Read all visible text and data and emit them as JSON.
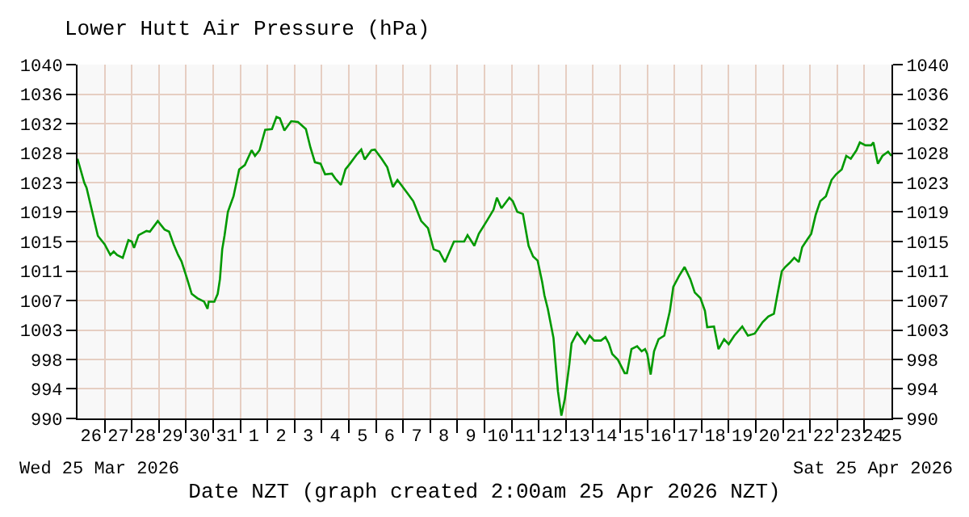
{
  "chart_data": {
    "type": "line",
    "title": "Lower Hutt Air Pressure (hPa)",
    "xlabel": "Date NZT (graph created 2:00am 25 Apr 2026 NZT)",
    "annotations": [
      "Wed 25 Mar 2026",
      "Sat 25 Apr 2026"
    ],
    "x": [
      "2026-03-26T00:00",
      "2026-03-26T06:00",
      "2026-03-26T08:00",
      "2026-03-26T18:00",
      "2026-03-27T00:00",
      "2026-03-27T05:00",
      "2026-03-27T08:00",
      "2026-03-27T11:00",
      "2026-03-27T16:00",
      "2026-03-27T21:00",
      "2026-03-28T00:00",
      "2026-03-28T02:00",
      "2026-03-28T06:00",
      "2026-03-28T13:00",
      "2026-03-28T16:00",
      "2026-03-28T23:00",
      "2026-03-29T05:00",
      "2026-03-29T09:00",
      "2026-03-29T13:00",
      "2026-03-29T17:00",
      "2026-03-29T20:00",
      "2026-03-30T01:00",
      "2026-03-30T05:00",
      "2026-03-30T10:00",
      "2026-03-30T16:00",
      "2026-03-30T19:00",
      "2026-03-30T20:00",
      "2026-03-31T01:00",
      "2026-03-31T04:00",
      "2026-03-31T06:00",
      "2026-03-31T08:00",
      "2026-03-31T10:00",
      "2026-03-31T13:00",
      "2026-03-31T18:00",
      "2026-03-31T23:00",
      "2026-04-01T04:00",
      "2026-04-01T10:00",
      "2026-04-01T13:00",
      "2026-04-01T17:00",
      "2026-04-01T22:00",
      "2026-04-02T04:00",
      "2026-04-02T08:00",
      "2026-04-02T11:00",
      "2026-04-02T15:00",
      "2026-04-02T21:00",
      "2026-04-03T03:00",
      "2026-04-03T10:00",
      "2026-04-03T14:00",
      "2026-04-03T18:00",
      "2026-04-03T23:00",
      "2026-04-04T03:00",
      "2026-04-04T09:00",
      "2026-04-04T12:00",
      "2026-04-04T17:00",
      "2026-04-04T21:00",
      "2026-04-05T01:00",
      "2026-04-05T07:00",
      "2026-04-05T11:00",
      "2026-04-05T14:00",
      "2026-04-05T20:00",
      "2026-04-05T23:00",
      "2026-04-06T05:00",
      "2026-04-06T10:00",
      "2026-04-06T15:00",
      "2026-04-06T19:00",
      "2026-04-07T04:00",
      "2026-04-07T09:00",
      "2026-04-07T16:00",
      "2026-04-07T22:00",
      "2026-04-08T03:00",
      "2026-04-08T08:00",
      "2026-04-08T13:00",
      "2026-04-08T21:00",
      "2026-04-09T06:00",
      "2026-04-09T09:00",
      "2026-04-09T15:00",
      "2026-04-09T19:00",
      "2026-04-10T02:00",
      "2026-04-10T08:00",
      "2026-04-10T11:00",
      "2026-04-10T15:00",
      "2026-04-10T22:00",
      "2026-04-11T01:00",
      "2026-04-11T05:00",
      "2026-04-11T10:00",
      "2026-04-11T15:00",
      "2026-04-11T19:00",
      "2026-04-11T23:00",
      "2026-04-12T03:00",
      "2026-04-12T05:00",
      "2026-04-12T08:00",
      "2026-04-12T13:00",
      "2026-04-12T17:00",
      "2026-04-12T20:00",
      "2026-04-12T23:00",
      "2026-04-13T03:00",
      "2026-04-13T05:00",
      "2026-04-13T10:00",
      "2026-04-13T17:00",
      "2026-04-13T21:00",
      "2026-04-14T01:00",
      "2026-04-14T07:00",
      "2026-04-14T11:00",
      "2026-04-14T14:00",
      "2026-04-14T17:00",
      "2026-04-14T22:00",
      "2026-04-15T04:00",
      "2026-04-15T06:00",
      "2026-04-15T10:00",
      "2026-04-15T15:00",
      "2026-04-15T19:00",
      "2026-04-15T22:00",
      "2026-04-16T00:00",
      "2026-04-16T03:00",
      "2026-04-16T06:00",
      "2026-04-16T10:00",
      "2026-04-16T15:00",
      "2026-04-16T20:00",
      "2026-04-16T23:00",
      "2026-04-17T04:00",
      "2026-04-17T09:00",
      "2026-04-17T14:00",
      "2026-04-17T18:00",
      "2026-04-17T23:00",
      "2026-04-18T03:00",
      "2026-04-18T05:00",
      "2026-04-18T11:00",
      "2026-04-18T15:00",
      "2026-04-18T20:00",
      "2026-04-19T00:00",
      "2026-04-19T05:00",
      "2026-04-19T12:00",
      "2026-04-19T17:00",
      "2026-04-19T23:00",
      "2026-04-20T06:00",
      "2026-04-20T11:00",
      "2026-04-20T16:00",
      "2026-04-20T19:00",
      "2026-04-20T23:00",
      "2026-04-21T02:00",
      "2026-04-21T06:00",
      "2026-04-21T10:00",
      "2026-04-21T14:00",
      "2026-04-21T17:00",
      "2026-04-21T22:00",
      "2026-04-22T01:00",
      "2026-04-22T05:00",
      "2026-04-22T09:00",
      "2026-04-22T14:00",
      "2026-04-22T19:00",
      "2026-04-22T23:00",
      "2026-04-23T04:00",
      "2026-04-23T08:00",
      "2026-04-23T12:00",
      "2026-04-23T17:00",
      "2026-04-23T20:00",
      "2026-04-24T01:00",
      "2026-04-24T06:00",
      "2026-04-24T08:00",
      "2026-04-24T12:00",
      "2026-04-24T16:00",
      "2026-04-24T21:00",
      "2026-04-25T00:00"
    ],
    "series": [
      {
        "color": "#009900",
        "values": [
          1026.7,
          1023.3,
          1022.6,
          1015.8,
          1014.6,
          1013.1,
          1013.6,
          1013.1,
          1012.7,
          1015.2,
          1015.0,
          1014.1,
          1015.9,
          1016.5,
          1016.4,
          1017.9,
          1016.7,
          1016.4,
          1014.6,
          1013.1,
          1012.2,
          1009.7,
          1007.6,
          1007.0,
          1006.5,
          1005.5,
          1006.5,
          1006.5,
          1007.6,
          1009.7,
          1013.9,
          1015.8,
          1019.2,
          1021.4,
          1025.2,
          1025.8,
          1027.9,
          1027.1,
          1027.9,
          1030.8,
          1030.9,
          1032.6,
          1032.4,
          1030.7,
          1032.0,
          1031.9,
          1030.9,
          1028.3,
          1026.2,
          1026.0,
          1024.5,
          1024.6,
          1023.9,
          1023.0,
          1025.2,
          1026.0,
          1027.3,
          1028.0,
          1026.6,
          1027.9,
          1028.0,
          1026.7,
          1025.5,
          1022.7,
          1023.7,
          1021.8,
          1020.7,
          1017.9,
          1016.9,
          1013.9,
          1013.6,
          1012.1,
          1015.0,
          1015.0,
          1015.9,
          1014.4,
          1016.1,
          1017.9,
          1019.5,
          1021.2,
          1019.7,
          1021.2,
          1020.7,
          1019.2,
          1018.9,
          1014.4,
          1012.9,
          1012.3,
          1009.3,
          1007.4,
          1005.5,
          1001.4,
          993.8,
          990.4,
          992.7,
          997.6,
          1000.6,
          1002.1,
          1000.6,
          1001.7,
          1001.0,
          1001.0,
          1001.5,
          1000.6,
          999.1,
          998.3,
          996.4,
          996.4,
          999.8,
          1000.2,
          999.5,
          999.8,
          999.1,
          996.2,
          999.5,
          1001.2,
          1001.7,
          1005.2,
          1008.6,
          1010.1,
          1011.4,
          1009.7,
          1007.8,
          1007.0,
          1005.2,
          1002.9,
          1003.0,
          999.8,
          1001.2,
          1000.5,
          1001.7,
          1003.0,
          1001.7,
          1002.0,
          1003.6,
          1004.4,
          1004.8,
          1007.4,
          1010.8,
          1011.4,
          1012.0,
          1012.7,
          1012.1,
          1014.2,
          1015.4,
          1016.1,
          1018.8,
          1020.7,
          1021.4,
          1023.7,
          1024.5,
          1025.2,
          1027.1,
          1026.7,
          1027.9,
          1029.0,
          1028.6,
          1028.6,
          1029.0,
          1026.0,
          1027.1,
          1027.7,
          1027.1
        ]
      }
    ],
    "xlim": [
      "2026-03-26T00:00",
      "2026-04-25T00:00"
    ],
    "xticks": [
      {
        "value": "2026-03-26T12:00",
        "label": "26"
      },
      {
        "value": "2026-03-27T12:00",
        "label": "27"
      },
      {
        "value": "2026-03-28T12:00",
        "label": "28"
      },
      {
        "value": "2026-03-29T12:00",
        "label": "29"
      },
      {
        "value": "2026-03-30T12:00",
        "label": "30"
      },
      {
        "value": "2026-03-31T12:00",
        "label": "31"
      },
      {
        "value": "2026-04-01T12:00",
        "label": "1"
      },
      {
        "value": "2026-04-02T12:00",
        "label": "2"
      },
      {
        "value": "2026-04-03T12:00",
        "label": "3"
      },
      {
        "value": "2026-04-04T12:00",
        "label": "4"
      },
      {
        "value": "2026-04-05T12:00",
        "label": "5"
      },
      {
        "value": "2026-04-06T12:00",
        "label": "6"
      },
      {
        "value": "2026-04-07T12:00",
        "label": "7"
      },
      {
        "value": "2026-04-08T12:00",
        "label": "8"
      },
      {
        "value": "2026-04-09T12:00",
        "label": "9"
      },
      {
        "value": "2026-04-10T12:00",
        "label": "10"
      },
      {
        "value": "2026-04-11T12:00",
        "label": "11"
      },
      {
        "value": "2026-04-12T12:00",
        "label": "12"
      },
      {
        "value": "2026-04-13T12:00",
        "label": "13"
      },
      {
        "value": "2026-04-14T12:00",
        "label": "14"
      },
      {
        "value": "2026-04-15T12:00",
        "label": "15"
      },
      {
        "value": "2026-04-16T12:00",
        "label": "16"
      },
      {
        "value": "2026-04-17T12:00",
        "label": "17"
      },
      {
        "value": "2026-04-18T12:00",
        "label": "18"
      },
      {
        "value": "2026-04-19T12:00",
        "label": "19"
      },
      {
        "value": "2026-04-20T12:00",
        "label": "20"
      },
      {
        "value": "2026-04-21T12:00",
        "label": "21"
      },
      {
        "value": "2026-04-22T12:00",
        "label": "22"
      },
      {
        "value": "2026-04-23T12:00",
        "label": "23"
      },
      {
        "value": "2026-04-24T08:00",
        "label": "24"
      },
      {
        "value": "2026-04-25T00:00",
        "label": "25"
      },
      {
        "value": "2026-03-27",
        "label": null
      },
      {
        "value": "2026-03-28",
        "label": null
      },
      {
        "value": "2026-03-29",
        "label": null
      },
      {
        "value": "2026-03-30",
        "label": null
      },
      {
        "value": "2026-03-31",
        "label": null
      },
      {
        "value": "2026-04-01",
        "label": null
      },
      {
        "value": "2026-04-02",
        "label": null
      },
      {
        "value": "2026-04-03",
        "label": null
      },
      {
        "value": "2026-04-04",
        "label": null
      },
      {
        "value": "2026-04-05",
        "label": null
      },
      {
        "value": "2026-04-06",
        "label": null
      },
      {
        "value": "2026-04-07",
        "label": null
      },
      {
        "value": "2026-04-08",
        "label": null
      },
      {
        "value": "2026-04-09",
        "label": null
      },
      {
        "value": "2026-04-10",
        "label": null
      },
      {
        "value": "2026-04-11",
        "label": null
      },
      {
        "value": "2026-04-12",
        "label": null
      },
      {
        "value": "2026-04-13",
        "label": null
      },
      {
        "value": "2026-04-14",
        "label": null
      },
      {
        "value": "2026-04-15",
        "label": null
      },
      {
        "value": "2026-04-16",
        "label": null
      },
      {
        "value": "2026-04-17",
        "label": null
      },
      {
        "value": "2026-04-18",
        "label": null
      },
      {
        "value": "2026-04-19",
        "label": null
      },
      {
        "value": "2026-04-20",
        "label": null
      },
      {
        "value": "2026-04-21",
        "label": null
      },
      {
        "value": "2026-04-22",
        "label": null
      },
      {
        "value": "2026-04-23",
        "label": null
      },
      {
        "value": "2026-04-24",
        "label": null
      }
    ],
    "ylim": [
      990,
      1040
    ],
    "yticks": [
      990,
      {
        "value": 994.17,
        "label": "994"
      },
      {
        "value": 998.33,
        "label": "998"
      },
      {
        "value": 1002.5,
        "label": "1003"
      },
      {
        "value": 1006.67,
        "label": "1007"
      },
      {
        "value": 1010.83,
        "label": "1011"
      },
      1015,
      {
        "value": 1019.17,
        "label": "1019"
      },
      {
        "value": 1023.33,
        "label": "1023"
      },
      {
        "value": 1027.5,
        "label": "1028"
      },
      {
        "value": 1031.67,
        "label": "1032"
      },
      {
        "value": 1035.83,
        "label": "1036"
      },
      1040
    ],
    "y2lim": [
      990,
      1040
    ],
    "y2ticks": [
      990,
      {
        "value": 994.17,
        "label": "994"
      },
      {
        "value": 998.33,
        "label": "998"
      },
      {
        "value": 1002.5,
        "label": "1003"
      },
      {
        "value": 1006.67,
        "label": "1007"
      },
      {
        "value": 1010.83,
        "label": "1011"
      },
      1015,
      {
        "value": 1019.17,
        "label": "1019"
      },
      {
        "value": 1023.33,
        "label": "1023"
      },
      {
        "value": 1027.5,
        "label": "1028"
      },
      {
        "value": 1031.67,
        "label": "1032"
      },
      {
        "value": 1035.83,
        "label": "1036"
      },
      1040
    ],
    "grid": true,
    "marker": "none",
    "line_style": "solid"
  }
}
